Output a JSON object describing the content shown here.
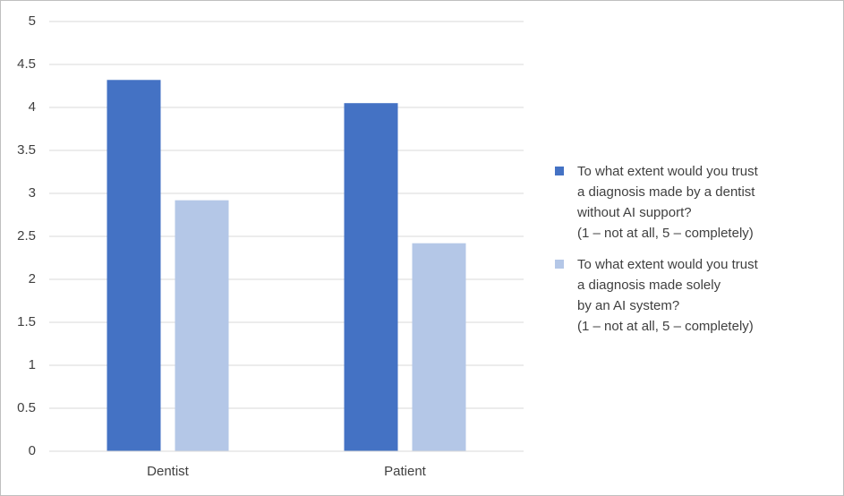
{
  "chart_data": {
    "type": "bar",
    "categories": [
      "Dentist",
      "Patient"
    ],
    "series": [
      {
        "name": "To what extent would you trust\na diagnosis made by a dentist\nwithout AI support?\n(1 – not at all, 5 – completely)",
        "color": "#4472c4",
        "values": [
          4.32,
          4.05
        ]
      },
      {
        "name": "To what extent would you trust\na diagnosis made solely\nby an AI system?\n(1 – not at all, 5 – completely)",
        "color": "#b4c7e7",
        "values": [
          2.92,
          2.42
        ]
      }
    ],
    "ylim": [
      0,
      5
    ],
    "yticks": [
      0,
      0.5,
      1,
      1.5,
      2,
      2.5,
      3,
      3.5,
      4,
      4.5,
      5
    ],
    "grid": true,
    "legend": "right"
  }
}
